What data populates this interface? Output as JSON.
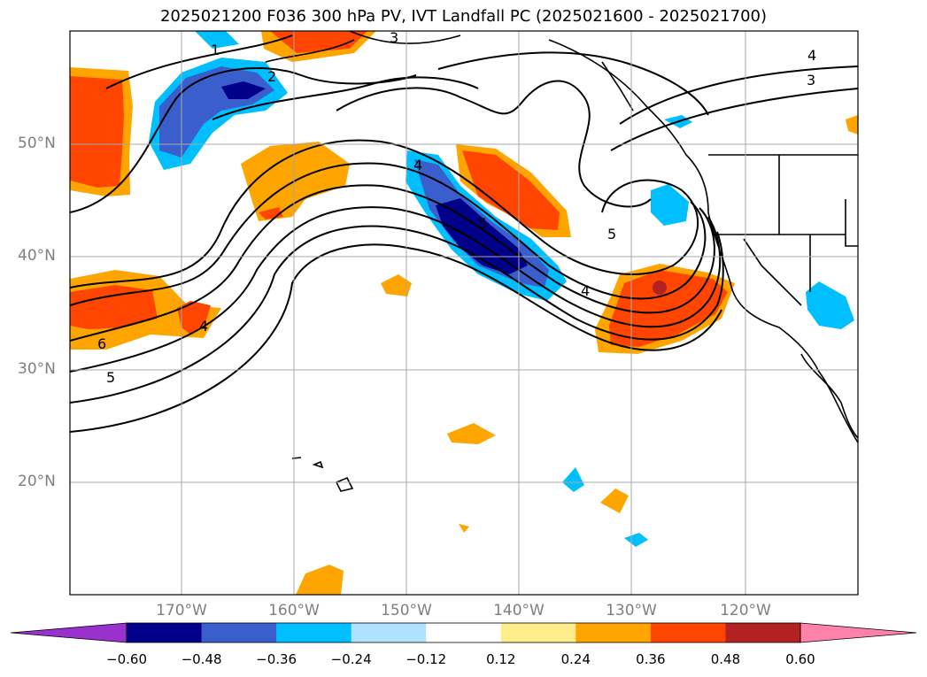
{
  "title": "2025021200 F036 300 hPa PV, IVT Landfall PC (2025021600 - 2025021700)",
  "map": {
    "lat_labels": [
      "50°N",
      "40°N",
      "30°N",
      "20°N"
    ],
    "lon_labels": [
      "170°W",
      "160°W",
      "150°W",
      "140°W",
      "130°W",
      "120°W"
    ],
    "contour_labels": [
      "1",
      "2",
      "3",
      "4",
      "3",
      "4",
      "4",
      "5",
      "5",
      "6",
      "4",
      "5"
    ]
  },
  "colorbar": {
    "ticks": [
      "−0.60",
      "−0.48",
      "−0.36",
      "−0.24",
      "−0.12",
      "0.12",
      "0.24",
      "0.36",
      "0.48",
      "0.60"
    ],
    "colors": [
      "#9932cc",
      "#00008b",
      "#3a5fcd",
      "#00bfff",
      "#b0e2ff",
      "#ffffff",
      "#ffec8b",
      "#ffa500",
      "#ff4500",
      "#b22222",
      "#ff82ab"
    ]
  }
}
